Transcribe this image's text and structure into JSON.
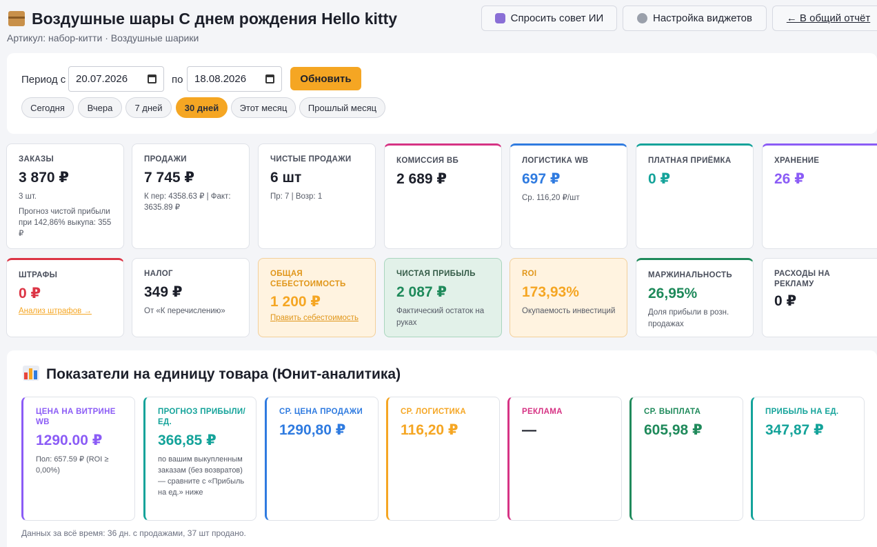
{
  "header": {
    "title": "Воздушные шары С днем рождения Hello kitty",
    "subtitle": "Артикул: набор-китти · Воздушные шарики",
    "ai_button": "Спросить совет ИИ",
    "widgets_button": "Настройка виджетов",
    "report_link": "← В общий отчёт"
  },
  "period": {
    "from_label": "Период с",
    "from_value": "20.07.2026",
    "to_label": "по",
    "to_value": "18.08.2026",
    "update_button": "Обновить",
    "presets": [
      "Сегодня",
      "Вчера",
      "7 дней",
      "30 дней",
      "Этот месяц",
      "Прошлый месяц"
    ],
    "active_preset": "30 дней"
  },
  "kpi": {
    "orders": {
      "label": "Заказы",
      "value": "3 870 ₽",
      "count": "3 шт.",
      "forecast": "Прогноз чистой прибыли при 142,86% выкупа: 355 ₽"
    },
    "sales": {
      "label": "Продажи",
      "value": "7 745 ₽",
      "detail": "К пер: 4358.63 ₽ | Факт: 3635.89 ₽"
    },
    "net_sales": {
      "label": "Чистые продажи",
      "value": "6 шт",
      "detail": "Пр: 7 | Возр: 1"
    },
    "commission": {
      "label": "Комиссия ВБ",
      "value": "2 689 ₽",
      "accent": "#d63384"
    },
    "logistics": {
      "label": "Логистика WB",
      "value": "697 ₽",
      "detail": "Ср. 116,20 ₽/шт",
      "accent": "#2f7be0"
    },
    "acceptance": {
      "label": "Платная приёмка",
      "value": "0 ₽",
      "accent": "#14a39a"
    },
    "storage": {
      "label": "Хранение",
      "value": "26 ₽",
      "accent": "#8b5cf6"
    },
    "fines": {
      "label": "Штрафы",
      "value": "0 ₽",
      "link": "Анализ штрафов →",
      "accent": "#dc3545"
    },
    "tax": {
      "label": "Налог",
      "value": "349 ₽",
      "detail": "От «К перечислению»"
    },
    "cost": {
      "label": "Общая себестоимость",
      "value": "1 200 ₽",
      "link": "Править себестоимость",
      "accent": "#f5a623"
    },
    "profit": {
      "label": "Чистая прибыль",
      "value": "2 087 ₽",
      "detail": "Фактический остаток на руках",
      "accent": "#1f8a5b"
    },
    "roi": {
      "label": "ROI",
      "value": "173,93%",
      "detail": "Окупаемость инвестиций",
      "accent": "#f5a623"
    },
    "margin": {
      "label": "Маржинальность",
      "value": "26,95%",
      "detail": "Доля прибыли в розн. продажах",
      "accent": "#1f8a5b"
    },
    "ads": {
      "label": "Расходы на рекламу",
      "value": "0 ₽"
    }
  },
  "unit": {
    "title": "Показатели на единицу товара (Юнит-аналитика)",
    "cards": {
      "price": {
        "label": "Цена на витрине WB",
        "value": "1290.00 ₽",
        "detail": "Пол: 657.59 ₽ (ROI ≥ 0,00%)",
        "color": "#8b5cf6"
      },
      "forecast": {
        "label": "Прогноз прибыли/ед.",
        "value": "366,85 ₽",
        "detail": "по вашим выкупленным заказам (без возвратов) — сравните с «Прибыль на ед.» ниже",
        "color": "#14a39a"
      },
      "avg_price": {
        "label": "Ср. цена продажи",
        "value": "1290,80 ₽",
        "color": "#2f7be0"
      },
      "avg_logistics": {
        "label": "Ср. логистика",
        "value": "116,20 ₽",
        "color": "#f5a623"
      },
      "ads": {
        "label": "Реклама",
        "value": "—",
        "color": "#d63384"
      },
      "avg_payout": {
        "label": "Ср. выплата",
        "value": "605,98 ₽",
        "color": "#1f8a5b"
      },
      "profit_unit": {
        "label": "Прибыль на ед.",
        "value": "347,87 ₽",
        "color": "#14a39a"
      }
    },
    "footnote": "Данных за всё время: 36 дн. с продажами, 37 шт продано."
  }
}
